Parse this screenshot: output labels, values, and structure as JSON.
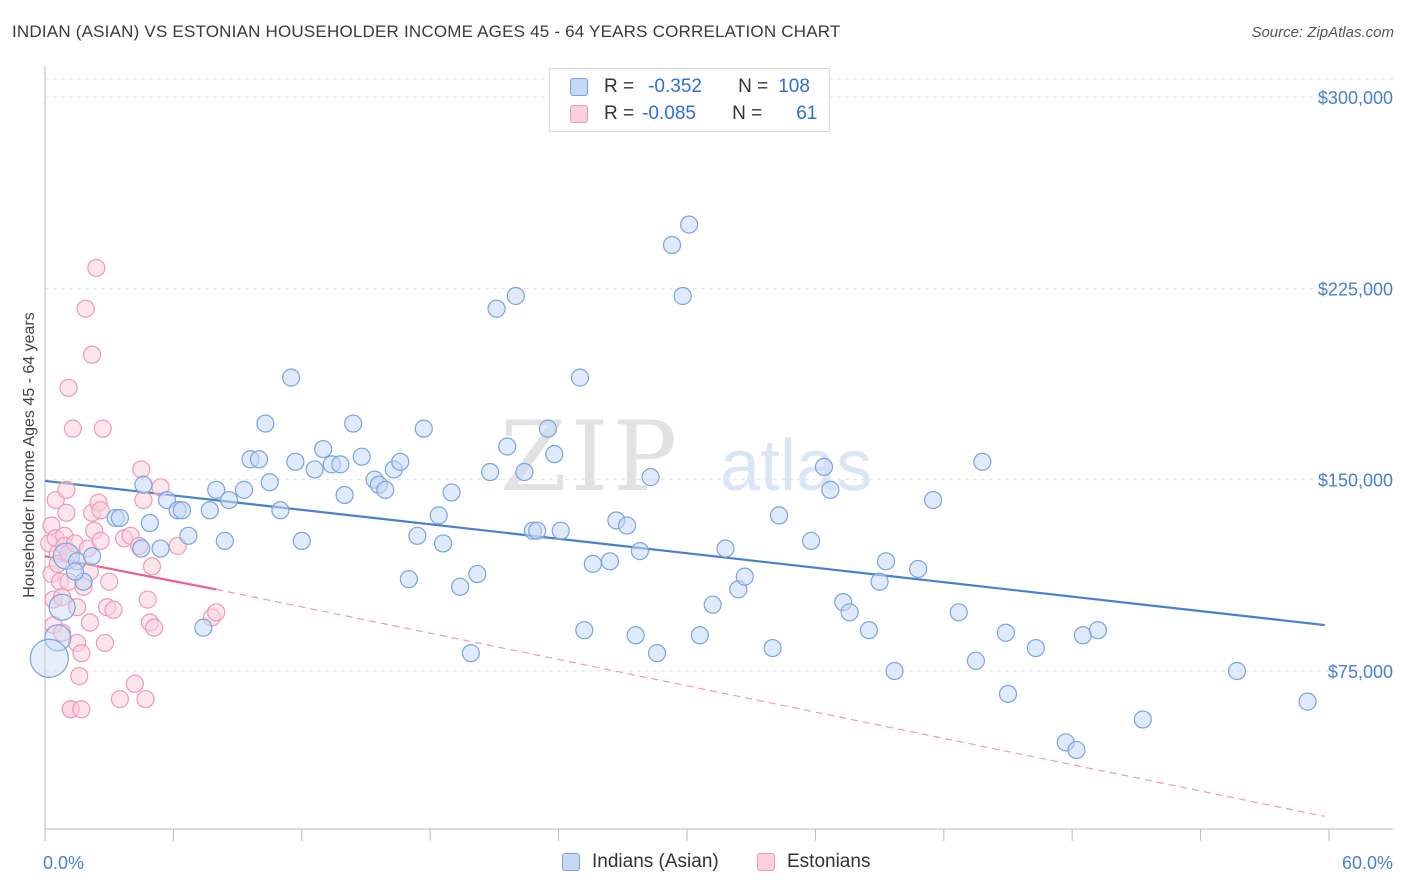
{
  "title": "INDIAN (ASIAN) VS ESTONIAN HOUSEHOLDER INCOME AGES 45 - 64 YEARS CORRELATION CHART",
  "source": "Source: ZipAtlas.com",
  "legend": {
    "rows": [
      {
        "r_label": "R =",
        "r_value": "-0.352",
        "n_label": "N =",
        "n_value": "108"
      },
      {
        "r_label": "R =",
        "r_value": "-0.085",
        "n_label": "N =",
        "n_value": "61"
      }
    ]
  },
  "bottom_legend": [
    "Indians (Asian)",
    "Estonians"
  ],
  "colors": {
    "blue": "#4a7fd0",
    "blue_fill": "#c5d9f5",
    "pink": "#e8628c",
    "pink_fill": "#fbd0dd"
  },
  "chart_data": {
    "type": "scatter",
    "title": "INDIAN (ASIAN) VS ESTONIAN HOUSEHOLDER INCOME AGES 45 - 64 YEARS CORRELATION CHART",
    "xlabel": "",
    "ylabel": "Householder Income Ages 45 - 64 years",
    "xlim": [
      0,
      60
    ],
    "ylim": [
      10000,
      315000
    ],
    "x_tick_labels": [
      "0.0%",
      "60.0%"
    ],
    "y_ticks": [
      75000,
      150000,
      225000,
      300000
    ],
    "y_tick_labels": [
      "$75,000",
      "$150,000",
      "$225,000",
      "$300,000"
    ],
    "grid": true,
    "legend_position": "top-center",
    "series": [
      {
        "name": "Indians (Asian)",
        "trend": {
          "x": [
            0,
            59.8
          ],
          "y": [
            149500,
            93000
          ]
        },
        "points": [
          [
            1.0,
            120000
          ],
          [
            0.6,
            88000
          ],
          [
            0.2,
            80000
          ],
          [
            0.8,
            100000
          ],
          [
            1.5,
            118000
          ],
          [
            1.8,
            110000
          ],
          [
            1.4,
            114000
          ],
          [
            2.2,
            120000
          ],
          [
            3.3,
            135000
          ],
          [
            3.5,
            135000
          ],
          [
            4.5,
            123000
          ],
          [
            4.6,
            148000
          ],
          [
            4.9,
            133000
          ],
          [
            5.4,
            123000
          ],
          [
            5.7,
            142000
          ],
          [
            6.2,
            138000
          ],
          [
            6.4,
            138000
          ],
          [
            6.7,
            128000
          ],
          [
            7.4,
            92000
          ],
          [
            7.7,
            138000
          ],
          [
            8.0,
            146000
          ],
          [
            8.4,
            126000
          ],
          [
            8.6,
            142000
          ],
          [
            9.3,
            146000
          ],
          [
            9.6,
            158000
          ],
          [
            10.0,
            158000
          ],
          [
            10.3,
            172000
          ],
          [
            10.5,
            149000
          ],
          [
            11.0,
            138000
          ],
          [
            11.5,
            190000
          ],
          [
            11.7,
            157000
          ],
          [
            12.0,
            126000
          ],
          [
            12.6,
            154000
          ],
          [
            13.0,
            162000
          ],
          [
            13.4,
            156000
          ],
          [
            13.8,
            156000
          ],
          [
            14.0,
            144000
          ],
          [
            14.4,
            172000
          ],
          [
            14.8,
            159000
          ],
          [
            15.4,
            150000
          ],
          [
            15.6,
            148000
          ],
          [
            15.9,
            146000
          ],
          [
            16.3,
            154000
          ],
          [
            16.6,
            157000
          ],
          [
            17.0,
            111000
          ],
          [
            17.4,
            128000
          ],
          [
            17.7,
            170000
          ],
          [
            18.4,
            136000
          ],
          [
            18.6,
            125000
          ],
          [
            19.0,
            145000
          ],
          [
            19.4,
            108000
          ],
          [
            19.9,
            82000
          ],
          [
            20.2,
            113000
          ],
          [
            20.8,
            153000
          ],
          [
            21.1,
            217000
          ],
          [
            21.6,
            163000
          ],
          [
            22.0,
            222000
          ],
          [
            22.4,
            153000
          ],
          [
            22.8,
            130000
          ],
          [
            23.0,
            130000
          ],
          [
            23.5,
            170000
          ],
          [
            23.8,
            160000
          ],
          [
            24.1,
            130000
          ],
          [
            25.0,
            190000
          ],
          [
            25.2,
            91000
          ],
          [
            25.6,
            117000
          ],
          [
            26.4,
            118000
          ],
          [
            26.7,
            134000
          ],
          [
            27.2,
            132000
          ],
          [
            27.6,
            89000
          ],
          [
            27.8,
            122000
          ],
          [
            28.3,
            151000
          ],
          [
            28.6,
            82000
          ],
          [
            29.3,
            242000
          ],
          [
            29.8,
            222000
          ],
          [
            30.1,
            250000
          ],
          [
            30.6,
            89000
          ],
          [
            31.2,
            101000
          ],
          [
            31.8,
            123000
          ],
          [
            32.4,
            107000
          ],
          [
            32.7,
            112000
          ],
          [
            34.0,
            84000
          ],
          [
            34.3,
            136000
          ],
          [
            35.8,
            126000
          ],
          [
            36.4,
            155000
          ],
          [
            36.7,
            146000
          ],
          [
            37.3,
            102000
          ],
          [
            37.6,
            98000
          ],
          [
            38.5,
            91000
          ],
          [
            39.0,
            110000
          ],
          [
            39.3,
            118000
          ],
          [
            39.7,
            75000
          ],
          [
            40.8,
            115000
          ],
          [
            41.5,
            142000
          ],
          [
            42.7,
            98000
          ],
          [
            43.5,
            79000
          ],
          [
            43.8,
            157000
          ],
          [
            44.9,
            90000
          ],
          [
            45.0,
            66000
          ],
          [
            46.3,
            84000
          ],
          [
            47.7,
            47000
          ],
          [
            48.2,
            44000
          ],
          [
            48.5,
            89000
          ],
          [
            49.2,
            91000
          ],
          [
            51.3,
            56000
          ],
          [
            55.7,
            75000
          ],
          [
            59.0,
            63000
          ]
        ]
      },
      {
        "name": "Estonians",
        "trend": {
          "x": [
            0,
            8.0
          ],
          "y": [
            120000,
            107000
          ]
        },
        "trend_extension": {
          "x": [
            8.0,
            59.8
          ],
          "y": [
            107000,
            18000
          ]
        },
        "points": [
          [
            0.2,
            125000
          ],
          [
            0.3,
            132000
          ],
          [
            0.3,
            113000
          ],
          [
            0.4,
            103000
          ],
          [
            0.4,
            93000
          ],
          [
            0.5,
            142000
          ],
          [
            0.5,
            127000
          ],
          [
            0.6,
            121000
          ],
          [
            0.6,
            117000
          ],
          [
            0.7,
            110000
          ],
          [
            0.8,
            104000
          ],
          [
            0.8,
            90000
          ],
          [
            0.9,
            128000
          ],
          [
            0.9,
            124000
          ],
          [
            1.0,
            146000
          ],
          [
            1.0,
            137000
          ],
          [
            1.1,
            186000
          ],
          [
            1.1,
            121000
          ],
          [
            1.1,
            110000
          ],
          [
            1.2,
            60000
          ],
          [
            1.2,
            60000
          ],
          [
            1.3,
            170000
          ],
          [
            1.4,
            125000
          ],
          [
            1.5,
            100000
          ],
          [
            1.5,
            86000
          ],
          [
            1.6,
            73000
          ],
          [
            1.7,
            82000
          ],
          [
            1.7,
            60000
          ],
          [
            1.8,
            108000
          ],
          [
            1.9,
            217000
          ],
          [
            2.0,
            123000
          ],
          [
            2.1,
            114000
          ],
          [
            2.1,
            94000
          ],
          [
            2.2,
            199000
          ],
          [
            2.2,
            137000
          ],
          [
            2.3,
            130000
          ],
          [
            2.4,
            233000
          ],
          [
            2.5,
            141000
          ],
          [
            2.6,
            138000
          ],
          [
            2.6,
            126000
          ],
          [
            2.7,
            170000
          ],
          [
            2.8,
            86000
          ],
          [
            2.9,
            100000
          ],
          [
            3.0,
            110000
          ],
          [
            3.2,
            99000
          ],
          [
            3.5,
            64000
          ],
          [
            3.7,
            127000
          ],
          [
            4.0,
            128000
          ],
          [
            4.2,
            70000
          ],
          [
            4.4,
            124000
          ],
          [
            4.5,
            154000
          ],
          [
            4.6,
            142000
          ],
          [
            4.7,
            64000
          ],
          [
            4.8,
            103000
          ],
          [
            4.9,
            94000
          ],
          [
            5.0,
            116000
          ],
          [
            5.1,
            92000
          ],
          [
            5.4,
            147000
          ],
          [
            6.2,
            124000
          ],
          [
            7.8,
            96000
          ],
          [
            8.0,
            98000
          ]
        ]
      }
    ]
  }
}
